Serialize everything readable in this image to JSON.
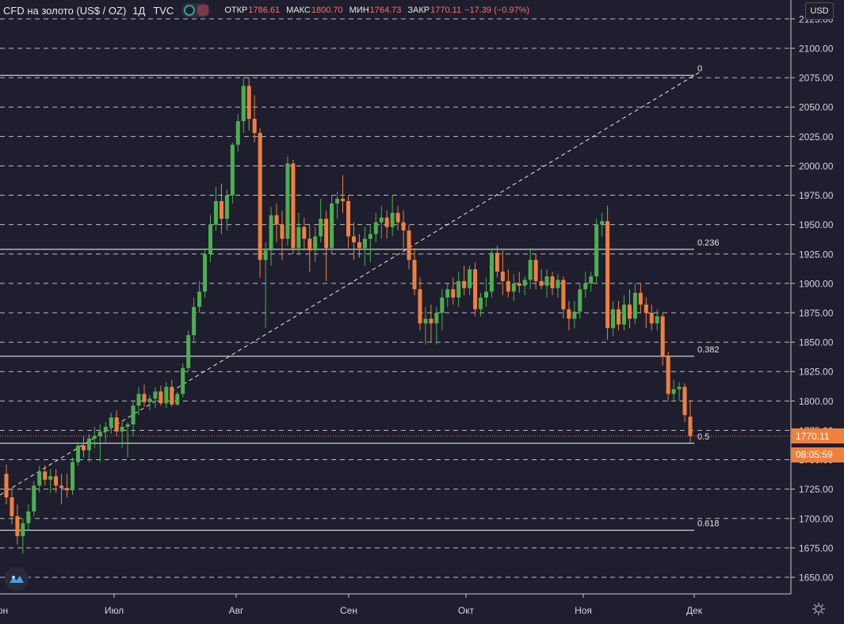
{
  "legend": {
    "symbol": "CFD на золото (US$ / OZ)",
    "timeframe": "1Д",
    "exchange": "TVC",
    "open_label": "ОТКР",
    "open_value": "1786.61",
    "high_label": "МАКС",
    "high_value": "1800.70",
    "low_label": "МИН",
    "low_value": "1764.73",
    "close_label": "ЗАКР",
    "close_value": "1770.11",
    "change_value": "−17.39 (−0.97%)"
  },
  "currency_button": "USD",
  "price_axis": {
    "ticks": [
      "2125.00",
      "2100.00",
      "2075.00",
      "2050.00",
      "2025.00",
      "2000.00",
      "1975.00",
      "1950.00",
      "1925.00",
      "1900.00",
      "1875.00",
      "1850.00",
      "1825.00",
      "1800.00",
      "1775.00",
      "1750.00",
      "1725.00",
      "1700.00",
      "1675.00",
      "1650.00"
    ],
    "current_price": "1770.11",
    "countdown": "08:05:59"
  },
  "time_axis": {
    "labels": [
      "Июн",
      "Июл",
      "Авг",
      "Сен",
      "Окт",
      "Ноя",
      "Дек"
    ]
  },
  "colors": {
    "background": "#1e1e2e",
    "up": "#4caf50",
    "down": "#f0803c",
    "price_tag": "#f0803c",
    "fib_line": "#ffffff",
    "grid": "#d8d8e0",
    "text": "#d1d4dc"
  },
  "icons": {
    "logo": "tradingview-logo-icon",
    "settings": "gear-icon"
  },
  "chart_data": {
    "type": "candlestick",
    "title": "CFD на золото (US$ / OZ)",
    "interval": "1Д",
    "ylim": [
      1640,
      2130
    ],
    "y_ticks": [
      2125,
      2100,
      2075,
      2050,
      2025,
      2000,
      1975,
      1950,
      1925,
      1900,
      1875,
      1850,
      1825,
      1800,
      1775,
      1750,
      1725,
      1700,
      1675,
      1650
    ],
    "x_labels": [
      "Июн",
      "Июл",
      "Авг",
      "Сен",
      "Окт",
      "Ноя",
      "Дек"
    ],
    "last_close": 1770.11,
    "fibonacci_retracement": {
      "levels": [
        {
          "label": "0",
          "price": 2077
        },
        {
          "label": "0.236",
          "price": 1929
        },
        {
          "label": "0.382",
          "price": 1838
        },
        {
          "label": "0.5",
          "price": 1764
        },
        {
          "label": "0.618",
          "price": 1690
        }
      ]
    },
    "candles": [
      {
        "o": 1738,
        "h": 1746,
        "l": 1712,
        "c": 1718
      },
      {
        "o": 1718,
        "h": 1725,
        "l": 1695,
        "c": 1702
      },
      {
        "o": 1702,
        "h": 1712,
        "l": 1678,
        "c": 1685
      },
      {
        "o": 1685,
        "h": 1700,
        "l": 1670,
        "c": 1696
      },
      {
        "o": 1696,
        "h": 1712,
        "l": 1690,
        "c": 1706
      },
      {
        "o": 1706,
        "h": 1732,
        "l": 1702,
        "c": 1728
      },
      {
        "o": 1728,
        "h": 1745,
        "l": 1722,
        "c": 1740
      },
      {
        "o": 1740,
        "h": 1745,
        "l": 1728,
        "c": 1733
      },
      {
        "o": 1733,
        "h": 1742,
        "l": 1722,
        "c": 1736
      },
      {
        "o": 1736,
        "h": 1742,
        "l": 1722,
        "c": 1728
      },
      {
        "o": 1728,
        "h": 1738,
        "l": 1712,
        "c": 1726
      },
      {
        "o": 1726,
        "h": 1738,
        "l": 1718,
        "c": 1724
      },
      {
        "o": 1724,
        "h": 1752,
        "l": 1720,
        "c": 1748
      },
      {
        "o": 1748,
        "h": 1765,
        "l": 1745,
        "c": 1762
      },
      {
        "o": 1762,
        "h": 1770,
        "l": 1752,
        "c": 1758
      },
      {
        "o": 1758,
        "h": 1772,
        "l": 1748,
        "c": 1768
      },
      {
        "o": 1768,
        "h": 1778,
        "l": 1760,
        "c": 1770
      },
      {
        "o": 1770,
        "h": 1780,
        "l": 1748,
        "c": 1774
      },
      {
        "o": 1774,
        "h": 1782,
        "l": 1765,
        "c": 1778
      },
      {
        "o": 1778,
        "h": 1790,
        "l": 1772,
        "c": 1786
      },
      {
        "o": 1786,
        "h": 1792,
        "l": 1770,
        "c": 1774
      },
      {
        "o": 1774,
        "h": 1783,
        "l": 1760,
        "c": 1778
      },
      {
        "o": 1778,
        "h": 1782,
        "l": 1752,
        "c": 1780
      },
      {
        "o": 1780,
        "h": 1800,
        "l": 1770,
        "c": 1796
      },
      {
        "o": 1796,
        "h": 1812,
        "l": 1788,
        "c": 1806
      },
      {
        "o": 1806,
        "h": 1814,
        "l": 1795,
        "c": 1799
      },
      {
        "o": 1799,
        "h": 1805,
        "l": 1792,
        "c": 1802
      },
      {
        "o": 1802,
        "h": 1812,
        "l": 1794,
        "c": 1808
      },
      {
        "o": 1808,
        "h": 1813,
        "l": 1796,
        "c": 1798
      },
      {
        "o": 1798,
        "h": 1816,
        "l": 1794,
        "c": 1812
      },
      {
        "o": 1812,
        "h": 1818,
        "l": 1795,
        "c": 1797
      },
      {
        "o": 1797,
        "h": 1808,
        "l": 1796,
        "c": 1806
      },
      {
        "o": 1806,
        "h": 1832,
        "l": 1803,
        "c": 1828
      },
      {
        "o": 1828,
        "h": 1860,
        "l": 1825,
        "c": 1856
      },
      {
        "o": 1856,
        "h": 1888,
        "l": 1850,
        "c": 1880
      },
      {
        "o": 1880,
        "h": 1902,
        "l": 1875,
        "c": 1893
      },
      {
        "o": 1893,
        "h": 1930,
        "l": 1888,
        "c": 1925
      },
      {
        "o": 1925,
        "h": 1958,
        "l": 1918,
        "c": 1950
      },
      {
        "o": 1950,
        "h": 1982,
        "l": 1945,
        "c": 1970
      },
      {
        "o": 1970,
        "h": 1985,
        "l": 1942,
        "c": 1955
      },
      {
        "o": 1955,
        "h": 1980,
        "l": 1945,
        "c": 1975
      },
      {
        "o": 1975,
        "h": 2020,
        "l": 1968,
        "c": 2018
      },
      {
        "o": 2018,
        "h": 2044,
        "l": 2012,
        "c": 2038
      },
      {
        "o": 2038,
        "h": 2075,
        "l": 2028,
        "c": 2068
      },
      {
        "o": 2068,
        "h": 2075,
        "l": 2030,
        "c": 2040
      },
      {
        "o": 2040,
        "h": 2060,
        "l": 2020,
        "c": 2028
      },
      {
        "o": 2028,
        "h": 2032,
        "l": 1905,
        "c": 1920
      },
      {
        "o": 1920,
        "h": 1935,
        "l": 1862,
        "c": 1928
      },
      {
        "o": 1928,
        "h": 1965,
        "l": 1915,
        "c": 1958
      },
      {
        "o": 1958,
        "h": 1968,
        "l": 1935,
        "c": 1950
      },
      {
        "o": 1950,
        "h": 1962,
        "l": 1920,
        "c": 1938
      },
      {
        "o": 1938,
        "h": 2008,
        "l": 1932,
        "c": 2002
      },
      {
        "o": 2002,
        "h": 2005,
        "l": 1925,
        "c": 1930
      },
      {
        "o": 1930,
        "h": 1960,
        "l": 1925,
        "c": 1948
      },
      {
        "o": 1948,
        "h": 1956,
        "l": 1928,
        "c": 1938
      },
      {
        "o": 1938,
        "h": 1950,
        "l": 1910,
        "c": 1928
      },
      {
        "o": 1928,
        "h": 1948,
        "l": 1918,
        "c": 1940
      },
      {
        "o": 1940,
        "h": 1972,
        "l": 1935,
        "c": 1955
      },
      {
        "o": 1955,
        "h": 1962,
        "l": 1902,
        "c": 1930
      },
      {
        "o": 1930,
        "h": 1975,
        "l": 1925,
        "c": 1968
      },
      {
        "o": 1968,
        "h": 1978,
        "l": 1955,
        "c": 1972
      },
      {
        "o": 1972,
        "h": 1992,
        "l": 1960,
        "c": 1970
      },
      {
        "o": 1970,
        "h": 1975,
        "l": 1930,
        "c": 1940
      },
      {
        "o": 1940,
        "h": 1952,
        "l": 1920,
        "c": 1935
      },
      {
        "o": 1935,
        "h": 1942,
        "l": 1922,
        "c": 1930
      },
      {
        "o": 1930,
        "h": 1948,
        "l": 1915,
        "c": 1938
      },
      {
        "o": 1938,
        "h": 1950,
        "l": 1918,
        "c": 1942
      },
      {
        "o": 1942,
        "h": 1960,
        "l": 1935,
        "c": 1952
      },
      {
        "o": 1952,
        "h": 1966,
        "l": 1938,
        "c": 1956
      },
      {
        "o": 1956,
        "h": 1962,
        "l": 1938,
        "c": 1948
      },
      {
        "o": 1948,
        "h": 1975,
        "l": 1940,
        "c": 1960
      },
      {
        "o": 1960,
        "h": 1966,
        "l": 1945,
        "c": 1952
      },
      {
        "o": 1952,
        "h": 1962,
        "l": 1930,
        "c": 1945
      },
      {
        "o": 1945,
        "h": 1950,
        "l": 1912,
        "c": 1920
      },
      {
        "o": 1920,
        "h": 1930,
        "l": 1890,
        "c": 1895
      },
      {
        "o": 1895,
        "h": 1905,
        "l": 1860,
        "c": 1866
      },
      {
        "o": 1866,
        "h": 1880,
        "l": 1848,
        "c": 1870
      },
      {
        "o": 1870,
        "h": 1882,
        "l": 1850,
        "c": 1866
      },
      {
        "o": 1866,
        "h": 1880,
        "l": 1848,
        "c": 1875
      },
      {
        "o": 1875,
        "h": 1895,
        "l": 1860,
        "c": 1888
      },
      {
        "o": 1888,
        "h": 1900,
        "l": 1880,
        "c": 1895
      },
      {
        "o": 1895,
        "h": 1905,
        "l": 1882,
        "c": 1888
      },
      {
        "o": 1888,
        "h": 1910,
        "l": 1880,
        "c": 1902
      },
      {
        "o": 1902,
        "h": 1915,
        "l": 1890,
        "c": 1896
      },
      {
        "o": 1896,
        "h": 1915,
        "l": 1890,
        "c": 1912
      },
      {
        "o": 1912,
        "h": 1918,
        "l": 1872,
        "c": 1878
      },
      {
        "o": 1878,
        "h": 1892,
        "l": 1872,
        "c": 1888
      },
      {
        "o": 1888,
        "h": 1905,
        "l": 1880,
        "c": 1893
      },
      {
        "o": 1893,
        "h": 1930,
        "l": 1888,
        "c": 1926
      },
      {
        "o": 1926,
        "h": 1932,
        "l": 1905,
        "c": 1910
      },
      {
        "o": 1910,
        "h": 1928,
        "l": 1890,
        "c": 1902
      },
      {
        "o": 1902,
        "h": 1912,
        "l": 1888,
        "c": 1893
      },
      {
        "o": 1893,
        "h": 1908,
        "l": 1885,
        "c": 1900
      },
      {
        "o": 1900,
        "h": 1910,
        "l": 1892,
        "c": 1898
      },
      {
        "o": 1898,
        "h": 1906,
        "l": 1890,
        "c": 1903
      },
      {
        "o": 1903,
        "h": 1930,
        "l": 1895,
        "c": 1920
      },
      {
        "o": 1920,
        "h": 1925,
        "l": 1895,
        "c": 1902
      },
      {
        "o": 1902,
        "h": 1912,
        "l": 1895,
        "c": 1898
      },
      {
        "o": 1898,
        "h": 1912,
        "l": 1888,
        "c": 1906
      },
      {
        "o": 1906,
        "h": 1910,
        "l": 1890,
        "c": 1896
      },
      {
        "o": 1896,
        "h": 1908,
        "l": 1888,
        "c": 1903
      },
      {
        "o": 1903,
        "h": 1906,
        "l": 1870,
        "c": 1878
      },
      {
        "o": 1878,
        "h": 1885,
        "l": 1860,
        "c": 1870
      },
      {
        "o": 1870,
        "h": 1885,
        "l": 1862,
        "c": 1876
      },
      {
        "o": 1876,
        "h": 1900,
        "l": 1870,
        "c": 1895
      },
      {
        "o": 1895,
        "h": 1910,
        "l": 1888,
        "c": 1900
      },
      {
        "o": 1900,
        "h": 1910,
        "l": 1893,
        "c": 1906
      },
      {
        "o": 1906,
        "h": 1955,
        "l": 1900,
        "c": 1950
      },
      {
        "o": 1950,
        "h": 1960,
        "l": 1940,
        "c": 1953
      },
      {
        "o": 1953,
        "h": 1966,
        "l": 1852,
        "c": 1862
      },
      {
        "o": 1862,
        "h": 1885,
        "l": 1855,
        "c": 1878
      },
      {
        "o": 1878,
        "h": 1885,
        "l": 1860,
        "c": 1865
      },
      {
        "o": 1865,
        "h": 1890,
        "l": 1860,
        "c": 1882
      },
      {
        "o": 1882,
        "h": 1895,
        "l": 1862,
        "c": 1870
      },
      {
        "o": 1870,
        "h": 1900,
        "l": 1865,
        "c": 1892
      },
      {
        "o": 1892,
        "h": 1900,
        "l": 1875,
        "c": 1882
      },
      {
        "o": 1882,
        "h": 1888,
        "l": 1862,
        "c": 1875
      },
      {
        "o": 1875,
        "h": 1882,
        "l": 1860,
        "c": 1866
      },
      {
        "o": 1866,
        "h": 1878,
        "l": 1860,
        "c": 1872
      },
      {
        "o": 1872,
        "h": 1875,
        "l": 1830,
        "c": 1838
      },
      {
        "o": 1838,
        "h": 1842,
        "l": 1800,
        "c": 1806
      },
      {
        "o": 1806,
        "h": 1818,
        "l": 1800,
        "c": 1810
      },
      {
        "o": 1810,
        "h": 1816,
        "l": 1800,
        "c": 1812
      },
      {
        "o": 1812,
        "h": 1815,
        "l": 1782,
        "c": 1788
      },
      {
        "o": 1786.61,
        "h": 1800.7,
        "l": 1764.73,
        "c": 1770.11
      }
    ]
  }
}
